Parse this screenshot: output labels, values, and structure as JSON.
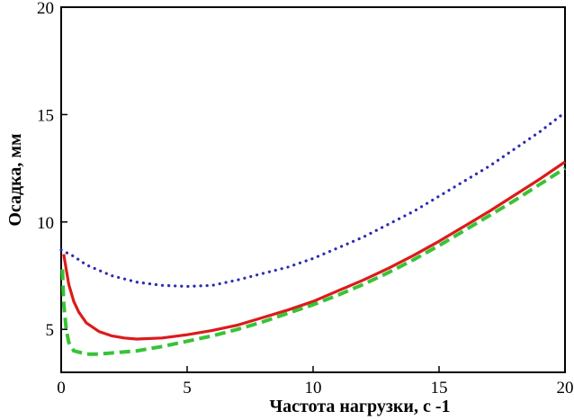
{
  "chart_data": {
    "type": "line",
    "xlabel": "Частота нагрузки, с -1",
    "ylabel": "Осадка, мм",
    "xlim": [
      0,
      20
    ],
    "ylim": [
      3,
      20
    ],
    "x_ticks": [
      0,
      5,
      10,
      15,
      20
    ],
    "y_ticks": [
      5,
      10,
      15,
      20
    ],
    "grid": false,
    "series": [
      {
        "color": "#2b2bb4",
        "style": "dotted",
        "x": [
          0,
          0.5,
          1,
          2,
          3,
          4,
          5,
          6,
          7,
          8,
          9,
          10,
          11,
          12,
          13,
          14,
          15,
          16,
          17,
          18,
          19,
          20
        ],
        "y": [
          8.7,
          8.4,
          8.0,
          7.5,
          7.2,
          7.05,
          7.0,
          7.05,
          7.3,
          7.6,
          7.9,
          8.3,
          8.8,
          9.3,
          9.9,
          10.5,
          11.2,
          11.9,
          12.6,
          13.4,
          14.2,
          15.1
        ]
      },
      {
        "color": "#dd1a1a",
        "style": "solid",
        "x": [
          0.1,
          0.2,
          0.3,
          0.5,
          0.7,
          1,
          1.5,
          2,
          2.5,
          3,
          4,
          5,
          6,
          7,
          8,
          9,
          10,
          11,
          12,
          13,
          14,
          15,
          16,
          17,
          18,
          19,
          20
        ],
        "y": [
          8.5,
          7.8,
          7.1,
          6.3,
          5.8,
          5.3,
          4.9,
          4.7,
          4.6,
          4.55,
          4.6,
          4.75,
          4.95,
          5.2,
          5.55,
          5.9,
          6.3,
          6.8,
          7.3,
          7.85,
          8.45,
          9.1,
          9.8,
          10.5,
          11.25,
          12.0,
          12.8
        ]
      },
      {
        "color": "#36c436",
        "style": "dashed",
        "x": [
          0.05,
          0.1,
          0.2,
          0.3,
          0.5,
          1,
          1.5,
          2,
          3,
          4,
          5,
          6,
          7,
          8,
          9,
          10,
          11,
          12,
          13,
          14,
          15,
          16,
          17,
          18,
          19,
          20
        ],
        "y": [
          7.8,
          6.2,
          5.0,
          4.4,
          4.0,
          3.85,
          3.85,
          3.9,
          4.0,
          4.2,
          4.45,
          4.7,
          5.0,
          5.35,
          5.75,
          6.15,
          6.6,
          7.1,
          7.65,
          8.25,
          8.9,
          9.6,
          10.3,
          11.0,
          11.75,
          12.5
        ]
      }
    ]
  }
}
